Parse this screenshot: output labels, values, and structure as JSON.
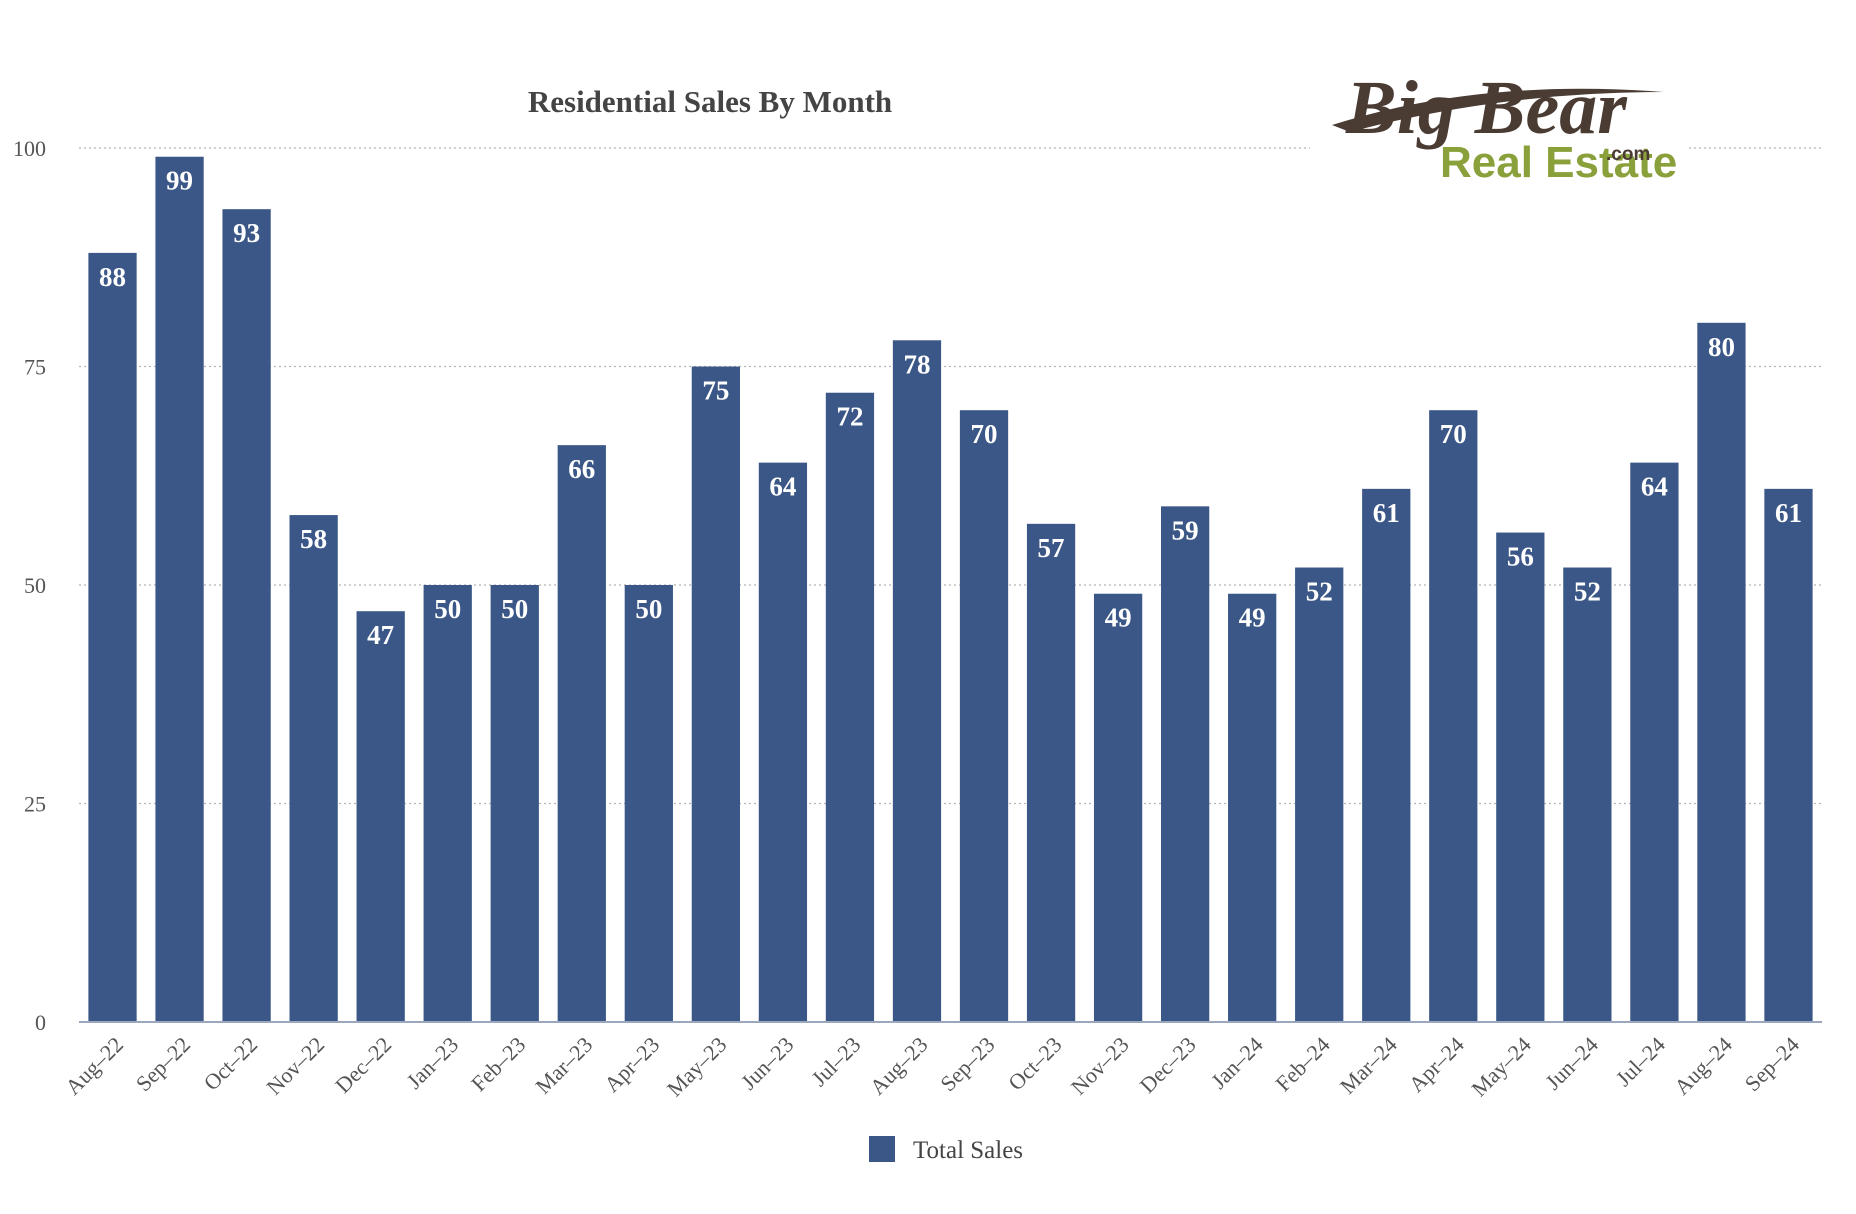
{
  "chart_data": {
    "type": "bar",
    "title": "Residential Sales By Month",
    "xlabel": "",
    "ylabel": "",
    "ylim": [
      0,
      100
    ],
    "yticks": [
      0,
      25,
      50,
      75,
      100
    ],
    "grid": true,
    "legend_position": "bottom",
    "categories": [
      "Aug–22",
      "Sep–22",
      "Oct–22",
      "Nov–22",
      "Dec–22",
      "Jan–23",
      "Feb–23",
      "Mar–23",
      "Apr–23",
      "May–23",
      "Jun–23",
      "Jul–23",
      "Aug–23",
      "Sep–23",
      "Oct–23",
      "Nov–23",
      "Dec–23",
      "Jan–24",
      "Feb–24",
      "Mar–24",
      "Apr–24",
      "May–24",
      "Jun–24",
      "Jul–24",
      "Aug–24",
      "Sep–24"
    ],
    "series": [
      {
        "name": "Total Sales",
        "color": "#3b5787",
        "values": [
          88,
          99,
          93,
          58,
          47,
          50,
          50,
          66,
          50,
          75,
          64,
          72,
          78,
          70,
          57,
          49,
          59,
          49,
          52,
          61,
          70,
          56,
          52,
          64,
          80,
          61
        ]
      }
    ]
  },
  "logo": {
    "line1": "Big Bear",
    "line2": "Real Estate",
    "suffix": ".com"
  }
}
